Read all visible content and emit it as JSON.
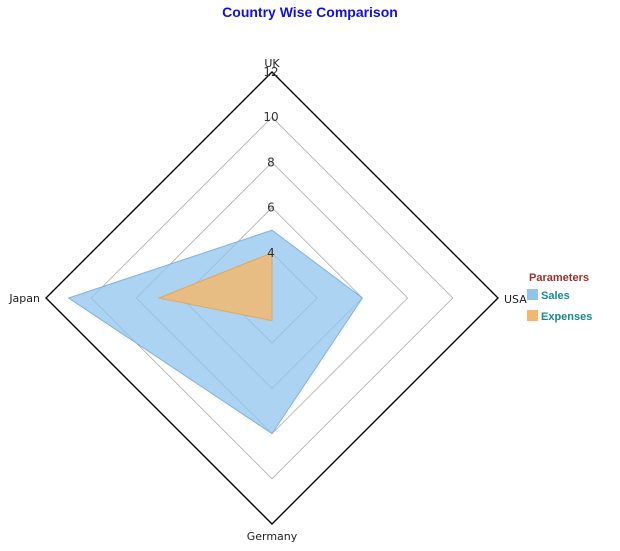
{
  "chart_data": {
    "type": "radar",
    "title": "Country Wise Comparison",
    "categories": [
      "UK",
      "USA",
      "Germany",
      "Japan"
    ],
    "ticks": [
      4,
      6,
      8,
      10,
      12
    ],
    "range": [
      2,
      12
    ],
    "grid": true,
    "legend": {
      "title": "Parameters",
      "position": "right"
    },
    "series": [
      {
        "name": "Sales",
        "values": [
          5,
          6,
          8,
          11
        ]
      },
      {
        "name": "Expenses",
        "values": [
          4,
          2,
          3,
          7
        ]
      }
    ]
  },
  "colors": {
    "title": "#1010e0",
    "legend_title": "#a03030",
    "legend_label": "#1a8a8a",
    "outer_frame": "#000000",
    "grid": "#aaaaaa",
    "series": [
      "#90c4ec",
      "#f2b870"
    ],
    "series_stroke": [
      "#7fb2de",
      "#e0a860"
    ]
  }
}
